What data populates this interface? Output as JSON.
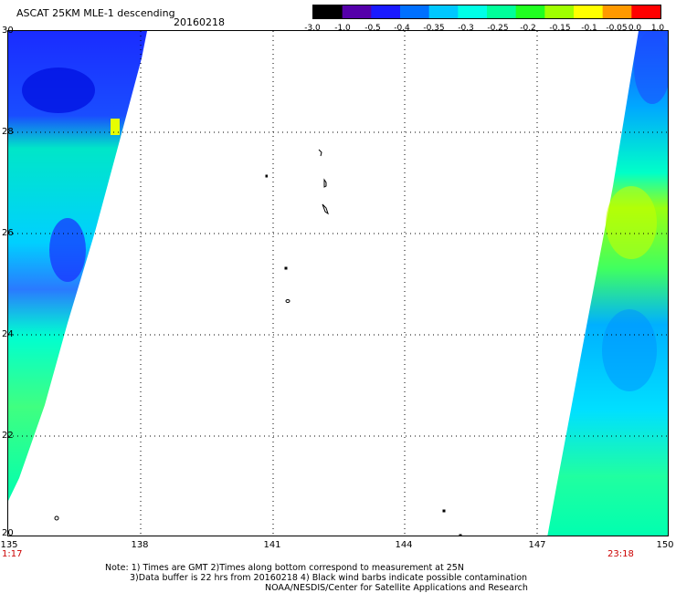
{
  "header": {
    "title": "ASCAT 25KM MLE-1 descending",
    "date": "20160218"
  },
  "colorbar": {
    "labels": [
      "-3.0",
      "-1.0",
      "-0.5",
      "-0.4",
      "-0.35",
      "-0.3",
      "-0.25",
      "-0.2",
      "-0.15",
      "-0.1",
      "-0.05",
      "0.0",
      "1.0"
    ],
    "colors": [
      "#000000",
      "#5500aa",
      "#1a1aff",
      "#0070ff",
      "#00c8ff",
      "#00ffe6",
      "#00ff9a",
      "#20ff20",
      "#a0ff00",
      "#ffff00",
      "#ff9900",
      "#ff0000"
    ]
  },
  "map": {
    "lat_labels": [
      "30",
      "28",
      "26",
      "24",
      "22",
      "20"
    ],
    "lon_labels": [
      "135",
      "138",
      "141",
      "144",
      "147",
      "150"
    ],
    "time_start": "1:17",
    "time_end": "23:18"
  },
  "notes": {
    "line1": "Note: 1) Times are GMT 2)Times along bottom correspond to measurement at 25N",
    "line2": "3)Data buffer is 22 hrs from 20160218 4) Black wind barbs indicate possible contamination",
    "line3": "NOAA/NESDIS/Center for Satellite Applications and Research"
  }
}
